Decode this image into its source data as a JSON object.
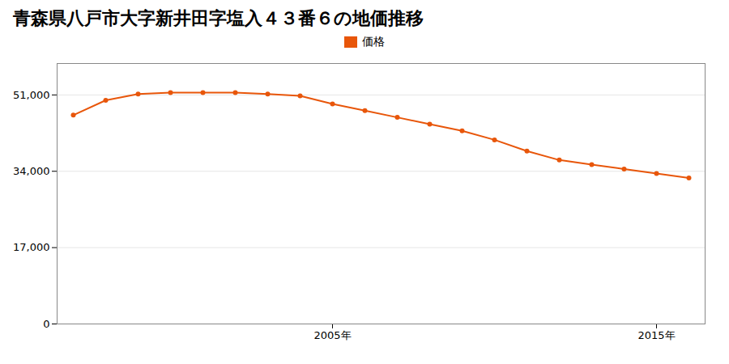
{
  "chart_data": {
    "type": "line",
    "title": "青森県八戸市大字新井田字塩入４３番６の地価推移",
    "x": [
      1997,
      1998,
      1999,
      2000,
      2001,
      2002,
      2003,
      2004,
      2005,
      2006,
      2007,
      2008,
      2009,
      2010,
      2011,
      2012,
      2013,
      2014,
      2015,
      2016
    ],
    "series": [
      {
        "name": "価格",
        "color": "#e8560a",
        "marker": "circle",
        "values": [
          46500,
          49800,
          51200,
          51500,
          51500,
          51500,
          51200,
          50800,
          49000,
          47500,
          46000,
          44500,
          43000,
          41000,
          38500,
          36500,
          35500,
          34500,
          33500,
          32500
        ]
      }
    ],
    "xlim": [
      1996.5,
      2016.5
    ],
    "xticks": [
      {
        "value": 2005,
        "label": "2005年"
      },
      {
        "value": 2015,
        "label": "2015年"
      }
    ],
    "ylim": [
      0,
      58000
    ],
    "yticks": [
      0,
      {
        "value": 17000,
        "label": "17,000"
      },
      {
        "value": 34000,
        "label": "34,000"
      },
      {
        "value": 51000,
        "label": "51,000"
      }
    ],
    "grid": true,
    "legend": "top"
  }
}
